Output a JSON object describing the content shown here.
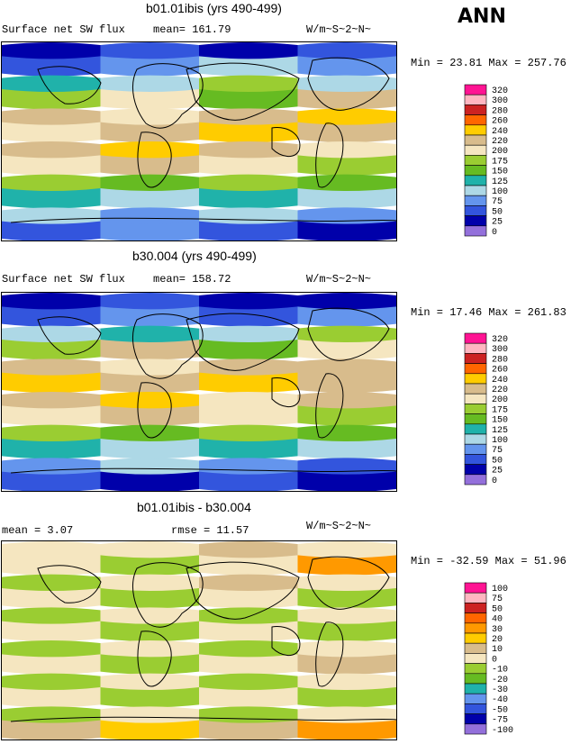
{
  "season": "ANN",
  "chart_data": [
    {
      "type": "heatmap",
      "title": "b01.01ibis (yrs 490-499)",
      "variable": "Surface net SW flux",
      "stat_text": "mean= 161.79",
      "units": "W/m~S~2~N~",
      "minmax_text": "Min =  23.81 Max = 257.76",
      "legend_levels": [
        "320",
        "300",
        "280",
        "260",
        "240",
        "220",
        "200",
        "175",
        "150",
        "125",
        "100",
        "75",
        "50",
        "25",
        "0"
      ],
      "legend_colors": [
        "#ff1493",
        "#ffb6c1",
        "#cc2222",
        "#ff6600",
        "#ffcc00",
        "#d8bc8c",
        "#f5e6c0",
        "#9acd32",
        "#66bb22",
        "#20b2aa",
        "#add8e6",
        "#6495ed",
        "#3355dd",
        "#0000aa",
        "#9370db"
      ],
      "bands": [
        {
          "colors": [
            "#0000aa",
            "#3355dd",
            "#0000aa",
            "#3355dd"
          ]
        },
        {
          "colors": [
            "#3355dd",
            "#6495ed",
            "#add8e6",
            "#6495ed"
          ]
        },
        {
          "colors": [
            "#20b2aa",
            "#add8e6",
            "#9acd32",
            "#add8e6"
          ]
        },
        {
          "colors": [
            "#9acd32",
            "#f5e6c0",
            "#66bb22",
            "#d8bc8c"
          ]
        },
        {
          "colors": [
            "#d8bc8c",
            "#f5e6c0",
            "#d8bc8c",
            "#ffcc00"
          ]
        },
        {
          "colors": [
            "#f5e6c0",
            "#d8bc8c",
            "#ffcc00",
            "#d8bc8c"
          ]
        },
        {
          "colors": [
            "#d8bc8c",
            "#ffcc00",
            "#d8bc8c",
            "#f5e6c0"
          ]
        },
        {
          "colors": [
            "#f5e6c0",
            "#d8bc8c",
            "#f5e6c0",
            "#9acd32"
          ]
        },
        {
          "colors": [
            "#9acd32",
            "#66bb22",
            "#9acd32",
            "#66bb22"
          ]
        },
        {
          "colors": [
            "#20b2aa",
            "#add8e6",
            "#20b2aa",
            "#add8e6"
          ]
        },
        {
          "colors": [
            "#add8e6",
            "#6495ed",
            "#add8e6",
            "#6495ed"
          ]
        },
        {
          "colors": [
            "#3355dd",
            "#6495ed",
            "#3355dd",
            "#0000aa"
          ]
        }
      ]
    },
    {
      "type": "heatmap",
      "title": "b30.004 (yrs 490-499)",
      "variable": "Surface net SW flux",
      "stat_text": "mean= 158.72",
      "units": "W/m~S~2~N~",
      "minmax_text": "Min =  17.46 Max = 261.83",
      "legend_levels": [
        "320",
        "300",
        "280",
        "260",
        "240",
        "220",
        "200",
        "175",
        "150",
        "125",
        "100",
        "75",
        "50",
        "25",
        "0"
      ],
      "legend_colors": [
        "#ff1493",
        "#ffb6c1",
        "#cc2222",
        "#ff6600",
        "#ffcc00",
        "#d8bc8c",
        "#f5e6c0",
        "#9acd32",
        "#66bb22",
        "#20b2aa",
        "#add8e6",
        "#6495ed",
        "#3355dd",
        "#0000aa",
        "#9370db"
      ],
      "bands": [
        {
          "colors": [
            "#0000aa",
            "#3355dd",
            "#0000aa",
            "#0000aa"
          ]
        },
        {
          "colors": [
            "#3355dd",
            "#6495ed",
            "#3355dd",
            "#6495ed"
          ]
        },
        {
          "colors": [
            "#add8e6",
            "#20b2aa",
            "#add8e6",
            "#9acd32"
          ]
        },
        {
          "colors": [
            "#9acd32",
            "#d8bc8c",
            "#66bb22",
            "#f5e6c0"
          ]
        },
        {
          "colors": [
            "#d8bc8c",
            "#f5e6c0",
            "#d8bc8c",
            "#d8bc8c"
          ]
        },
        {
          "colors": [
            "#ffcc00",
            "#d8bc8c",
            "#ffcc00",
            "#d8bc8c"
          ]
        },
        {
          "colors": [
            "#d8bc8c",
            "#ffcc00",
            "#f5e6c0",
            "#d8bc8c"
          ]
        },
        {
          "colors": [
            "#f5e6c0",
            "#d8bc8c",
            "#f5e6c0",
            "#9acd32"
          ]
        },
        {
          "colors": [
            "#9acd32",
            "#66bb22",
            "#9acd32",
            "#66bb22"
          ]
        },
        {
          "colors": [
            "#20b2aa",
            "#add8e6",
            "#20b2aa",
            "#add8e6"
          ]
        },
        {
          "colors": [
            "#6495ed",
            "#add8e6",
            "#6495ed",
            "#3355dd"
          ]
        },
        {
          "colors": [
            "#3355dd",
            "#0000aa",
            "#3355dd",
            "#0000aa"
          ]
        }
      ]
    },
    {
      "type": "heatmap",
      "title": "b01.01ibis - b30.004",
      "variable": "mean =    3.07",
      "stat_text": "rmse =   11.57",
      "units": "W/m~S~2~N~",
      "minmax_text": "Min = -32.59 Max =  51.96",
      "legend_levels": [
        "100",
        "75",
        "50",
        "40",
        "30",
        "20",
        "10",
        "0",
        "-10",
        "-20",
        "-30",
        "-40",
        "-50",
        "-75",
        "-100"
      ],
      "legend_colors": [
        "#ff1493",
        "#ffb6c1",
        "#cc2222",
        "#ff6600",
        "#ff9900",
        "#ffcc00",
        "#d8bc8c",
        "#f5e6c0",
        "#9acd32",
        "#66bb22",
        "#20b2aa",
        "#6495ed",
        "#3355dd",
        "#0000aa",
        "#9370db"
      ],
      "bands": [
        {
          "colors": [
            "#f5e6c0",
            "#f5e6c0",
            "#d8bc8c",
            "#f5e6c0"
          ]
        },
        {
          "colors": [
            "#f5e6c0",
            "#9acd32",
            "#f5e6c0",
            "#ff9900"
          ]
        },
        {
          "colors": [
            "#9acd32",
            "#f5e6c0",
            "#d8bc8c",
            "#f5e6c0"
          ]
        },
        {
          "colors": [
            "#f5e6c0",
            "#9acd32",
            "#f5e6c0",
            "#9acd32"
          ]
        },
        {
          "colors": [
            "#9acd32",
            "#f5e6c0",
            "#9acd32",
            "#f5e6c0"
          ]
        },
        {
          "colors": [
            "#f5e6c0",
            "#9acd32",
            "#f5e6c0",
            "#9acd32"
          ]
        },
        {
          "colors": [
            "#9acd32",
            "#f5e6c0",
            "#9acd32",
            "#f5e6c0"
          ]
        },
        {
          "colors": [
            "#f5e6c0",
            "#9acd32",
            "#f5e6c0",
            "#d8bc8c"
          ]
        },
        {
          "colors": [
            "#9acd32",
            "#f5e6c0",
            "#9acd32",
            "#f5e6c0"
          ]
        },
        {
          "colors": [
            "#f5e6c0",
            "#9acd32",
            "#f5e6c0",
            "#9acd32"
          ]
        },
        {
          "colors": [
            "#9acd32",
            "#f5e6c0",
            "#9acd32",
            "#f5e6c0"
          ]
        },
        {
          "colors": [
            "#d8bc8c",
            "#ffcc00",
            "#d8bc8c",
            "#ff9900"
          ]
        }
      ]
    }
  ]
}
